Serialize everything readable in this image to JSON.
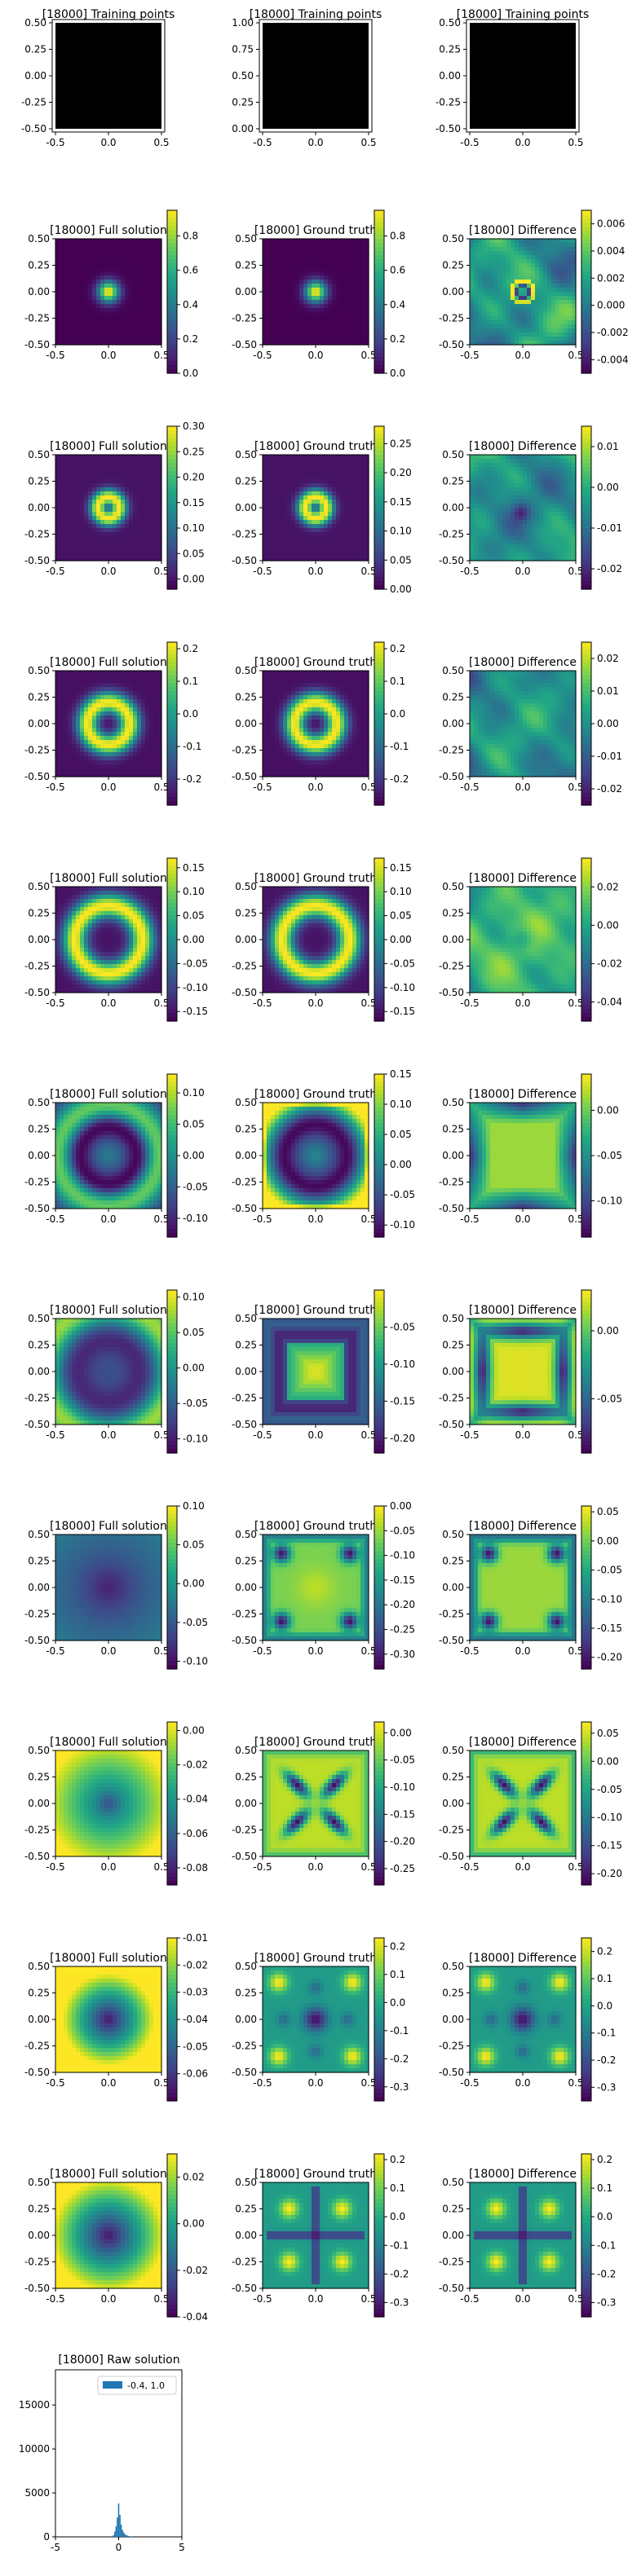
{
  "figure": {
    "step": "[18000]",
    "colormap": "viridis",
    "rows": [
      {
        "panels": [
          {
            "kind": "points",
            "title": "[18000] Training points",
            "xticks": [
              "-0.5",
              "0.0",
              "0.5"
            ],
            "yticks": [
              "0.50",
              "0.25",
              "0.00",
              "-0.25",
              "-0.50"
            ]
          },
          {
            "kind": "points",
            "title": "[18000] Training points",
            "xticks": [
              "-0.5",
              "0.0",
              "0.5"
            ],
            "yticks": [
              "1.00",
              "0.75",
              "0.50",
              "0.25",
              "0.00"
            ]
          },
          {
            "kind": "points",
            "title": "[18000] Training points",
            "xticks": [
              "-0.5",
              "0.0",
              "0.5"
            ],
            "yticks": [
              "0.50",
              "0.25",
              "0.00",
              "-0.25",
              "-0.50"
            ]
          }
        ]
      },
      {
        "panels": [
          {
            "kind": "field",
            "title": "[18000] Full solution",
            "pattern": "gauss",
            "vmin": 0.0,
            "vmax": 0.95,
            "cbticks": [
              "0.8",
              "0.6",
              "0.4",
              "0.2",
              "0.0"
            ]
          },
          {
            "kind": "field",
            "title": "[18000] Ground truth",
            "pattern": "gauss",
            "vmin": 0.0,
            "vmax": 0.95,
            "cbticks": [
              "0.8",
              "0.6",
              "0.4",
              "0.2",
              "0.0"
            ]
          },
          {
            "kind": "field",
            "title": "[18000] Difference",
            "pattern": "noise1",
            "vmin": -0.005,
            "vmax": 0.007,
            "cbticks": [
              "0.006",
              "0.004",
              "0.002",
              "0.000",
              "-0.002",
              "-0.004"
            ]
          }
        ]
      },
      {
        "panels": [
          {
            "kind": "field",
            "title": "[18000] Full solution",
            "pattern": "ring1",
            "vmin": -0.02,
            "vmax": 0.3,
            "cbticks": [
              "0.30",
              "0.25",
              "0.20",
              "0.15",
              "0.10",
              "0.05",
              "0.00"
            ]
          },
          {
            "kind": "field",
            "title": "[18000] Ground truth",
            "pattern": "ring1",
            "vmin": 0.0,
            "vmax": 0.28,
            "cbticks": [
              "0.25",
              "0.20",
              "0.15",
              "0.10",
              "0.05",
              "0.00"
            ]
          },
          {
            "kind": "field",
            "title": "[18000] Difference",
            "pattern": "noise2",
            "vmin": -0.025,
            "vmax": 0.015,
            "cbticks": [
              "0.01",
              "0.00",
              "-0.01",
              "-0.02"
            ]
          }
        ]
      },
      {
        "panels": [
          {
            "kind": "field",
            "title": "[18000] Full solution",
            "pattern": "ring2",
            "vmin": -0.28,
            "vmax": 0.22,
            "cbticks": [
              "0.2",
              "0.1",
              "0.0",
              "-0.1",
              "-0.2"
            ]
          },
          {
            "kind": "field",
            "title": "[18000] Ground truth",
            "pattern": "ring2",
            "vmin": -0.28,
            "vmax": 0.22,
            "cbticks": [
              "0.2",
              "0.1",
              "0.0",
              "-0.1",
              "-0.2"
            ]
          },
          {
            "kind": "field",
            "title": "[18000] Difference",
            "pattern": "noise3",
            "vmin": -0.025,
            "vmax": 0.025,
            "cbticks": [
              "0.02",
              "0.01",
              "0.00",
              "-0.01",
              "-0.02"
            ]
          }
        ]
      },
      {
        "panels": [
          {
            "kind": "field",
            "title": "[18000] Full solution",
            "pattern": "ring3",
            "vmin": -0.17,
            "vmax": 0.17,
            "cbticks": [
              "0.15",
              "0.10",
              "0.05",
              "0.00",
              "-0.05",
              "-0.10",
              "-0.15"
            ]
          },
          {
            "kind": "field",
            "title": "[18000] Ground truth",
            "pattern": "ring3",
            "vmin": -0.17,
            "vmax": 0.17,
            "cbticks": [
              "0.15",
              "0.10",
              "0.05",
              "0.00",
              "-0.05",
              "-0.10",
              "-0.15"
            ]
          },
          {
            "kind": "field",
            "title": "[18000] Difference",
            "pattern": "noise4",
            "vmin": -0.05,
            "vmax": 0.035,
            "cbticks": [
              "0.02",
              "0.00",
              "-0.02",
              "-0.04"
            ]
          }
        ]
      },
      {
        "panels": [
          {
            "kind": "field",
            "title": "[18000] Full solution",
            "pattern": "ring4",
            "vmin": -0.13,
            "vmax": 0.13,
            "cbticks": [
              "0.10",
              "0.05",
              "0.00",
              "-0.05",
              "-0.10"
            ]
          },
          {
            "kind": "field",
            "title": "[18000] Ground truth",
            "pattern": "ring4gt",
            "vmin": -0.12,
            "vmax": 0.15,
            "cbticks": [
              "0.15",
              "0.10",
              "0.05",
              "0.00",
              "-0.05",
              "-0.10"
            ]
          },
          {
            "kind": "field",
            "title": "[18000] Difference",
            "pattern": "diffX",
            "vmin": -0.14,
            "vmax": 0.04,
            "cbticks": [
              "0.00",
              "-0.05",
              "-0.10"
            ]
          }
        ]
      },
      {
        "panels": [
          {
            "kind": "field",
            "title": "[18000] Full solution",
            "pattern": "ring5",
            "vmin": -0.12,
            "vmax": 0.11,
            "cbticks": [
              "0.10",
              "0.05",
              "0.00",
              "-0.05",
              "-0.10"
            ]
          },
          {
            "kind": "field",
            "title": "[18000] Ground truth",
            "pattern": "squareRing",
            "vmin": -0.22,
            "vmax": 0.0,
            "cbticks": [
              "-0.05",
              "-0.10",
              "-0.15",
              "-0.20"
            ]
          },
          {
            "kind": "field",
            "title": "[18000] Difference",
            "pattern": "diffStar",
            "vmin": -0.09,
            "vmax": 0.03,
            "cbticks": [
              "0.00",
              "-0.05"
            ]
          }
        ]
      },
      {
        "panels": [
          {
            "kind": "field",
            "title": "[18000] Full solution",
            "pattern": "blobDark",
            "vmin": -0.11,
            "vmax": 0.1,
            "cbticks": [
              "0.10",
              "0.05",
              "0.00",
              "-0.05",
              "-0.10"
            ]
          },
          {
            "kind": "field",
            "title": "[18000] Ground truth",
            "pattern": "cornerDots",
            "vmin": -0.33,
            "vmax": 0.0,
            "cbticks": [
              "0.00",
              "-0.05",
              "-0.10",
              "-0.15",
              "-0.20",
              "-0.25",
              "-0.30"
            ]
          },
          {
            "kind": "field",
            "title": "[18000] Difference",
            "pattern": "cornerDots2",
            "vmin": -0.22,
            "vmax": 0.06,
            "cbticks": [
              "0.05",
              "0.00",
              "-0.05",
              "-0.10",
              "-0.15",
              "-0.20"
            ]
          }
        ]
      },
      {
        "panels": [
          {
            "kind": "field",
            "title": "[18000] Full solution",
            "pattern": "blobCenter",
            "vmin": -0.09,
            "vmax": 0.005,
            "cbticks": [
              "0.00",
              "-0.02",
              "-0.04",
              "-0.06",
              "-0.08"
            ]
          },
          {
            "kind": "field",
            "title": "[18000] Ground truth",
            "pattern": "xshape",
            "vmin": -0.28,
            "vmax": 0.02,
            "cbticks": [
              "0.00",
              "-0.05",
              "-0.10",
              "-0.15",
              "-0.20",
              "-0.25"
            ]
          },
          {
            "kind": "field",
            "title": "[18000] Difference",
            "pattern": "xshape2",
            "vmin": -0.22,
            "vmax": 0.07,
            "cbticks": [
              "0.05",
              "0.00",
              "-0.05",
              "-0.10",
              "-0.15",
              "-0.20"
            ]
          }
        ]
      },
      {
        "panels": [
          {
            "kind": "field",
            "title": "[18000] Full solution",
            "pattern": "blobCenter2",
            "vmin": -0.07,
            "vmax": -0.01,
            "cbticks": [
              "-0.01",
              "-0.02",
              "-0.03",
              "-0.04",
              "-0.05",
              "-0.06"
            ]
          },
          {
            "kind": "field",
            "title": "[18000] Ground truth",
            "pattern": "fourBlobs",
            "vmin": -0.35,
            "vmax": 0.23,
            "cbticks": [
              "0.2",
              "0.1",
              "0.0",
              "-0.1",
              "-0.2",
              "-0.3"
            ]
          },
          {
            "kind": "field",
            "title": "[18000] Difference",
            "pattern": "fourBlobs",
            "vmin": -0.35,
            "vmax": 0.25,
            "cbticks": [
              "0.2",
              "0.1",
              "0.0",
              "-0.1",
              "-0.2",
              "-0.3"
            ]
          }
        ]
      },
      {
        "panels": [
          {
            "kind": "field",
            "title": "[18000] Full solution",
            "pattern": "blobCenter3",
            "vmin": -0.04,
            "vmax": 0.03,
            "cbticks": [
              "0.02",
              "0.00",
              "-0.02",
              "-0.04"
            ]
          },
          {
            "kind": "field",
            "title": "[18000] Ground truth",
            "pattern": "crossBlobs",
            "vmin": -0.35,
            "vmax": 0.22,
            "cbticks": [
              "0.2",
              "0.1",
              "0.0",
              "-0.1",
              "-0.2",
              "-0.3"
            ]
          },
          {
            "kind": "field",
            "title": "[18000] Difference",
            "pattern": "crossBlobs",
            "vmin": -0.35,
            "vmax": 0.22,
            "cbticks": [
              "0.2",
              "0.1",
              "0.0",
              "-0.1",
              "-0.2",
              "-0.3"
            ]
          }
        ]
      }
    ],
    "field_xticks": [
      "-0.5",
      "0.0",
      "0.5"
    ],
    "field_yticks": [
      "0.50",
      "0.25",
      "0.00",
      "-0.25",
      "-0.50"
    ]
  },
  "chart_data": {
    "type": "bar",
    "title": "[18000] Raw solution",
    "legend": [
      "-0.4, 1.0"
    ],
    "legend_placement": "top-right",
    "xlim": [
      -5,
      5
    ],
    "ylim": [
      0,
      19000
    ],
    "xticks": [
      "-5",
      "0",
      "5"
    ],
    "yticks": [
      "15000",
      "10000",
      "5000",
      "0"
    ],
    "series": [
      {
        "name": "-0.4, 1.0",
        "color": "#1f77b4",
        "x": [
          -0.4,
          -0.3,
          -0.2,
          -0.1,
          0.0,
          0.1,
          0.2,
          0.3,
          0.4,
          0.5,
          0.6,
          0.7,
          0.8,
          0.9,
          1.0
        ],
        "values": [
          200,
          600,
          1200,
          2200,
          3800,
          2500,
          1400,
          800,
          500,
          300,
          200,
          150,
          100,
          80,
          50
        ]
      }
    ]
  }
}
